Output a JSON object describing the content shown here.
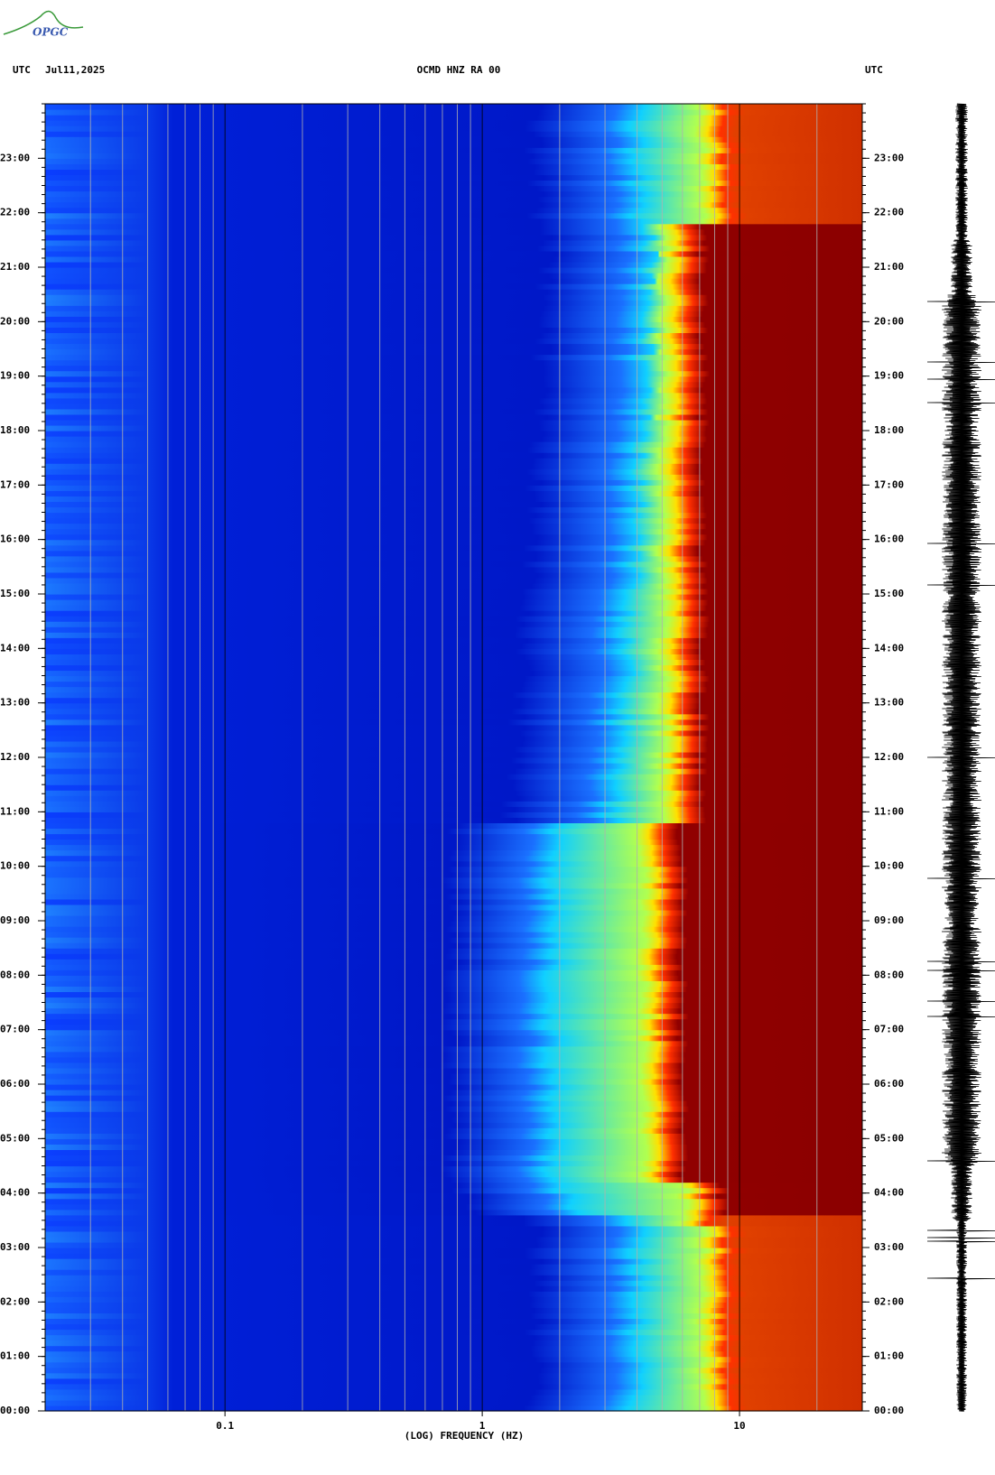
{
  "header": {
    "left_label": "UTC",
    "date": "Jul11,2025",
    "station": "OCMD HNZ RA 00",
    "right_label": "UTC"
  },
  "logo": "OPGC",
  "chart_data": {
    "type": "spectrogram",
    "xlabel": "(LOG) FREQUENCY (HZ)",
    "xscale": "log",
    "xlim": [
      0.02,
      30
    ],
    "xticks": [
      0.1,
      1,
      10
    ],
    "ylim": [
      0,
      24
    ],
    "yticks": [
      {
        "value": 0,
        "label": "00:00"
      },
      {
        "value": 1,
        "label": "01:00"
      },
      {
        "value": 2,
        "label": "02:00"
      },
      {
        "value": 3,
        "label": "03:00"
      },
      {
        "value": 4,
        "label": "04:00"
      },
      {
        "value": 5,
        "label": "05:00"
      },
      {
        "value": 6,
        "label": "06:00"
      },
      {
        "value": 7,
        "label": "07:00"
      },
      {
        "value": 8,
        "label": "08:00"
      },
      {
        "value": 9,
        "label": "09:00"
      },
      {
        "value": 10,
        "label": "10:00"
      },
      {
        "value": 11,
        "label": "11:00"
      },
      {
        "value": 12,
        "label": "12:00"
      },
      {
        "value": 13,
        "label": "13:00"
      },
      {
        "value": 14,
        "label": "14:00"
      },
      {
        "value": 15,
        "label": "15:00"
      },
      {
        "value": 16,
        "label": "16:00"
      },
      {
        "value": 17,
        "label": "17:00"
      },
      {
        "value": 18,
        "label": "18:00"
      },
      {
        "value": 19,
        "label": "19:00"
      },
      {
        "value": 20,
        "label": "20:00"
      },
      {
        "value": 21,
        "label": "21:00"
      },
      {
        "value": 22,
        "label": "22:00"
      },
      {
        "value": 23,
        "label": "23:00"
      }
    ],
    "grid": true
  }
}
